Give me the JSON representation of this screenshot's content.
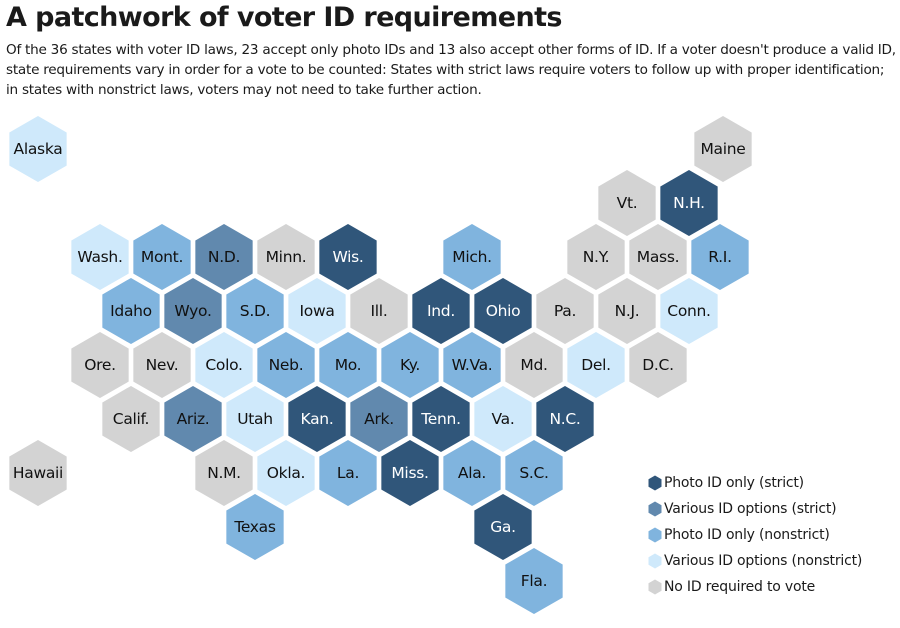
{
  "header": {
    "title": "A patchwork of voter ID requirements",
    "subtitle": "Of the 36 states with voter ID laws, 23 accept only photo IDs and 13 also accept other forms of ID. If a voter doesn't produce a valid ID, state requirements vary in order for a vote to be counted: States with strict laws require voters to follow up with proper identification; in states with nonstrict laws, voters may not need to take further action."
  },
  "categories": [
    {
      "id": "photo_strict",
      "label": "Photo ID only (strict)",
      "color": "#30567a",
      "text_color": "#ffffff"
    },
    {
      "id": "various_strict",
      "label": "Various ID options (strict)",
      "color": "#6189ae",
      "text_color": "#111111"
    },
    {
      "id": "photo_nonstrict",
      "label": "Photo ID only (nonstrict)",
      "color": "#80b4de",
      "text_color": "#111111"
    },
    {
      "id": "various_nonstrict",
      "label": "Various ID options (nonstrict)",
      "color": "#cfe9fb",
      "text_color": "#111111"
    },
    {
      "id": "none",
      "label": "No ID required to vote",
      "color": "#d3d3d3",
      "text_color": "#111111"
    }
  ],
  "states": [
    {
      "label": "Alaska",
      "category": "various_nonstrict"
    },
    {
      "label": "Maine",
      "category": "none"
    },
    {
      "label": "Vt.",
      "category": "none"
    },
    {
      "label": "N.H.",
      "category": "photo_strict"
    },
    {
      "label": "Wash.",
      "category": "various_nonstrict"
    },
    {
      "label": "Mont.",
      "category": "photo_nonstrict"
    },
    {
      "label": "N.D.",
      "category": "various_strict"
    },
    {
      "label": "Minn.",
      "category": "none"
    },
    {
      "label": "Wis.",
      "category": "photo_strict"
    },
    {
      "label": "Mich.",
      "category": "photo_nonstrict"
    },
    {
      "label": "N.Y.",
      "category": "none"
    },
    {
      "label": "Mass.",
      "category": "none"
    },
    {
      "label": "R.I.",
      "category": "photo_nonstrict"
    },
    {
      "label": "Idaho",
      "category": "photo_nonstrict"
    },
    {
      "label": "Wyo.",
      "category": "various_strict"
    },
    {
      "label": "S.D.",
      "category": "photo_nonstrict"
    },
    {
      "label": "Iowa",
      "category": "various_nonstrict"
    },
    {
      "label": "Ill.",
      "category": "none"
    },
    {
      "label": "Ind.",
      "category": "photo_strict"
    },
    {
      "label": "Ohio",
      "category": "photo_strict"
    },
    {
      "label": "Pa.",
      "category": "none"
    },
    {
      "label": "N.J.",
      "category": "none"
    },
    {
      "label": "Conn.",
      "category": "various_nonstrict"
    },
    {
      "label": "Ore.",
      "category": "none"
    },
    {
      "label": "Nev.",
      "category": "none"
    },
    {
      "label": "Colo.",
      "category": "various_nonstrict"
    },
    {
      "label": "Neb.",
      "category": "photo_nonstrict"
    },
    {
      "label": "Mo.",
      "category": "photo_nonstrict"
    },
    {
      "label": "Ky.",
      "category": "photo_nonstrict"
    },
    {
      "label": "W.Va.",
      "category": "photo_nonstrict"
    },
    {
      "label": "Md.",
      "category": "none"
    },
    {
      "label": "Del.",
      "category": "various_nonstrict"
    },
    {
      "label": "D.C.",
      "category": "none"
    },
    {
      "label": "Calif.",
      "category": "none"
    },
    {
      "label": "Ariz.",
      "category": "various_strict"
    },
    {
      "label": "Utah",
      "category": "various_nonstrict"
    },
    {
      "label": "Kan.",
      "category": "photo_strict"
    },
    {
      "label": "Ark.",
      "category": "various_strict"
    },
    {
      "label": "Tenn.",
      "category": "photo_strict"
    },
    {
      "label": "Va.",
      "category": "various_nonstrict"
    },
    {
      "label": "N.C.",
      "category": "photo_strict"
    },
    {
      "label": "Hawaii",
      "category": "none"
    },
    {
      "label": "N.M.",
      "category": "none"
    },
    {
      "label": "Okla.",
      "category": "various_nonstrict"
    },
    {
      "label": "La.",
      "category": "photo_nonstrict"
    },
    {
      "label": "Miss.",
      "category": "photo_strict"
    },
    {
      "label": "Ala.",
      "category": "photo_nonstrict"
    },
    {
      "label": "S.C.",
      "category": "photo_nonstrict"
    },
    {
      "label": "Texas",
      "category": "photo_nonstrict"
    },
    {
      "label": "Ga.",
      "category": "photo_strict"
    },
    {
      "label": "Fla.",
      "category": "photo_nonstrict"
    }
  ]
}
